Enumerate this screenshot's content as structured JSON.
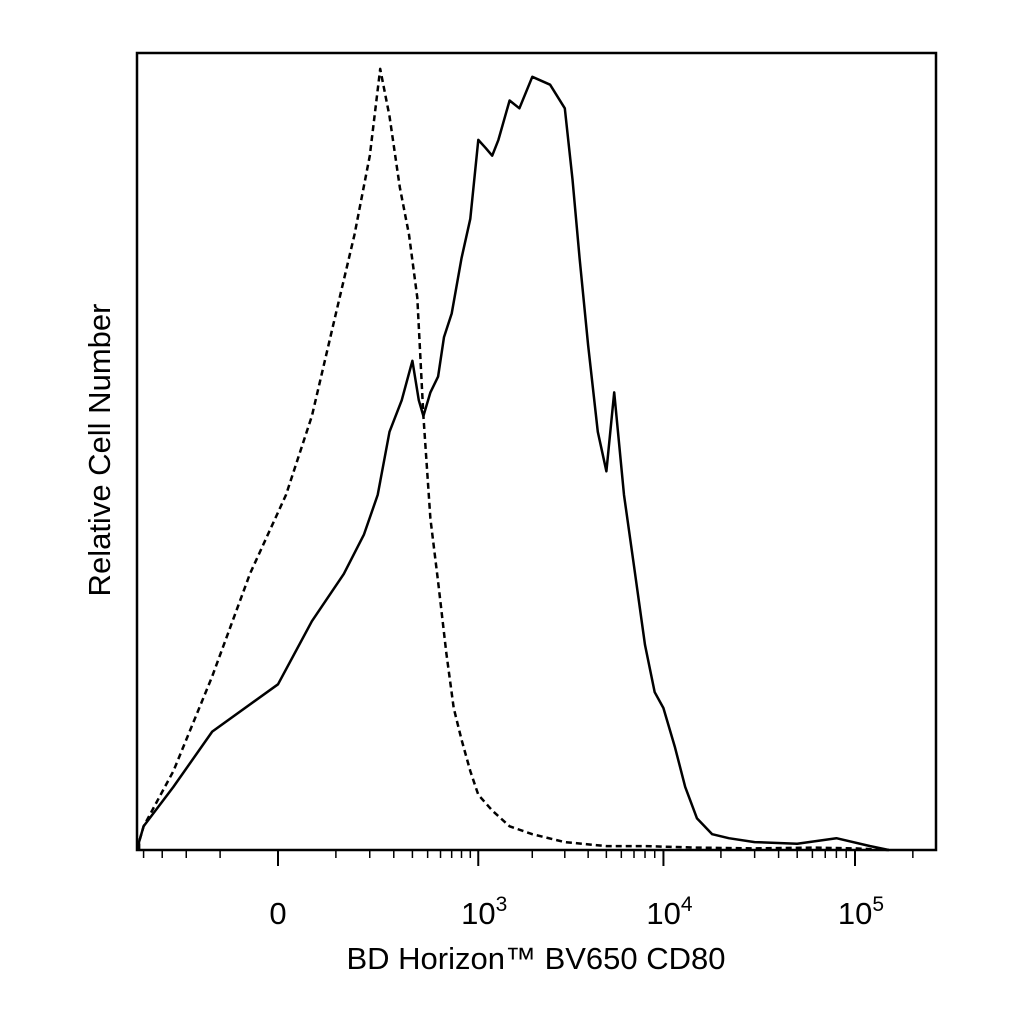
{
  "chart_data": {
    "type": "area",
    "title": "",
    "xlabel": "BD Horizon™ BV650 CD80",
    "ylabel": "Relative Cell Number",
    "x_scale": "biexponential",
    "ylim": [
      0,
      100
    ],
    "grid": false,
    "legend": "none",
    "x_tick_labels": [
      {
        "value": 0,
        "label": "0",
        "exp": ""
      },
      {
        "value": 1000,
        "label": "10",
        "exp": "3"
      },
      {
        "value": 10000,
        "label": "10",
        "exp": "4"
      },
      {
        "value": 100000,
        "label": "10",
        "exp": "5"
      }
    ],
    "series": [
      {
        "style": "dashed",
        "x": [
          -1200,
          -700,
          -400,
          -250,
          -120,
          -40,
          10,
          50,
          100,
          150,
          200,
          240,
          280,
          330,
          380,
          430,
          470,
          520,
          580,
          650,
          720,
          800,
          900,
          1000,
          1200,
          1500,
          2000,
          3000,
          5000,
          8000,
          15000,
          30000,
          60000,
          100000,
          150000
        ],
        "y": [
          0,
          1,
          3,
          10,
          22,
          35,
          45,
          55,
          68,
          78,
          88,
          99,
          93,
          84,
          78,
          70,
          55,
          42,
          34,
          25,
          18,
          14,
          10,
          7,
          5,
          3,
          2,
          1,
          0.5,
          0.5,
          0.3,
          0.2,
          0.3,
          0.2,
          0
        ]
      },
      {
        "style": "solid",
        "x": [
          -1200,
          -700,
          -400,
          -250,
          -120,
          0,
          50,
          120,
          180,
          230,
          280,
          340,
          400,
          440,
          470,
          520,
          580,
          630,
          700,
          800,
          900,
          1000,
          1100,
          1200,
          1300,
          1500,
          1700,
          2000,
          2500,
          3000,
          3300,
          3600,
          4000,
          4500,
          5000,
          5500,
          6200,
          7000,
          8000,
          9000,
          10000,
          11500,
          13000,
          15000,
          18000,
          22000,
          30000,
          50000,
          80000,
          120000,
          150000
        ],
        "y": [
          0,
          1,
          3,
          8,
          15,
          21,
          29,
          35,
          40,
          45,
          53,
          57,
          62,
          57,
          55,
          58,
          60,
          65,
          68,
          75,
          80,
          90,
          89,
          88,
          90,
          95,
          94,
          98,
          97,
          94,
          85,
          75,
          64,
          53,
          48,
          58,
          45,
          36,
          26,
          20,
          18,
          13,
          8,
          4,
          2,
          1.5,
          1,
          0.8,
          1.5,
          0.5,
          0
        ]
      }
    ]
  }
}
